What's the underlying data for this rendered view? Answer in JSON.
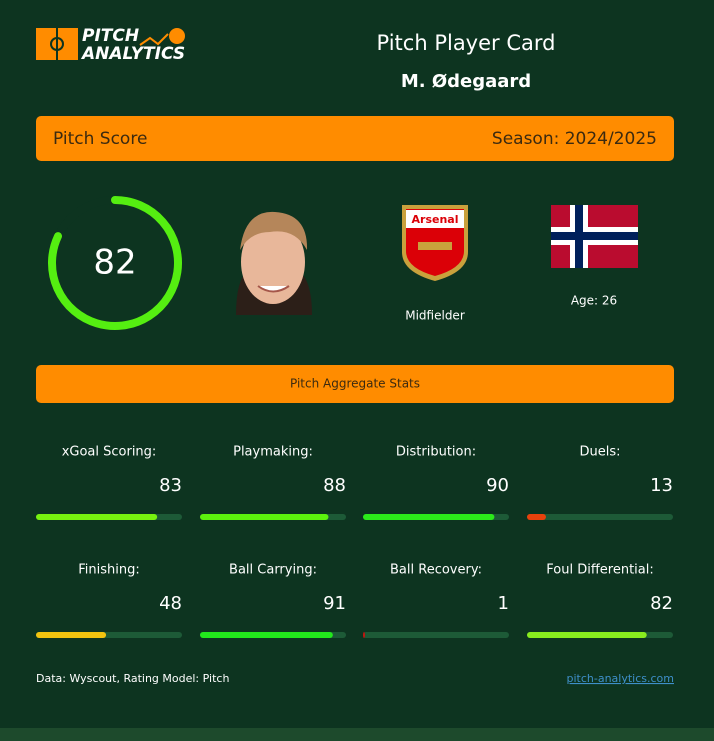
{
  "logo": {
    "line1": "PITCH",
    "line2": "ANALYTICS"
  },
  "header": {
    "title": "Pitch Player Card",
    "player": "M. Ødegaard"
  },
  "score_bar": {
    "label": "Pitch Score",
    "season": "Season: 2024/2025"
  },
  "score": {
    "value": 82,
    "range": [
      0,
      100
    ],
    "color": "#55ee11"
  },
  "player": {
    "position": "Midfielder",
    "age": "Age: 26"
  },
  "stats_title": "Pitch Aggregate Stats",
  "stats": {
    "range": [
      0,
      100
    ],
    "items": [
      {
        "label": "xGoal Scoring:",
        "value": 83,
        "color": "#77f20f"
      },
      {
        "label": "Playmaking:",
        "value": 88,
        "color": "#5cf20d"
      },
      {
        "label": "Distribution:",
        "value": 90,
        "color": "#2bea1a"
      },
      {
        "label": "Duels:",
        "value": 13,
        "color": "#e8410c"
      },
      {
        "label": "Finishing:",
        "value": 48,
        "color": "#f2c30f"
      },
      {
        "label": "Ball Carrying:",
        "value": 91,
        "color": "#22e81c"
      },
      {
        "label": "Ball Recovery:",
        "value": 1,
        "color": "#c4140f"
      },
      {
        "label": "Foul Differential:",
        "value": 82,
        "color": "#88ec1e"
      }
    ]
  },
  "footer": {
    "source": "Data: Wyscout, Rating Model: Pitch",
    "link": "pitch-analytics.com"
  }
}
